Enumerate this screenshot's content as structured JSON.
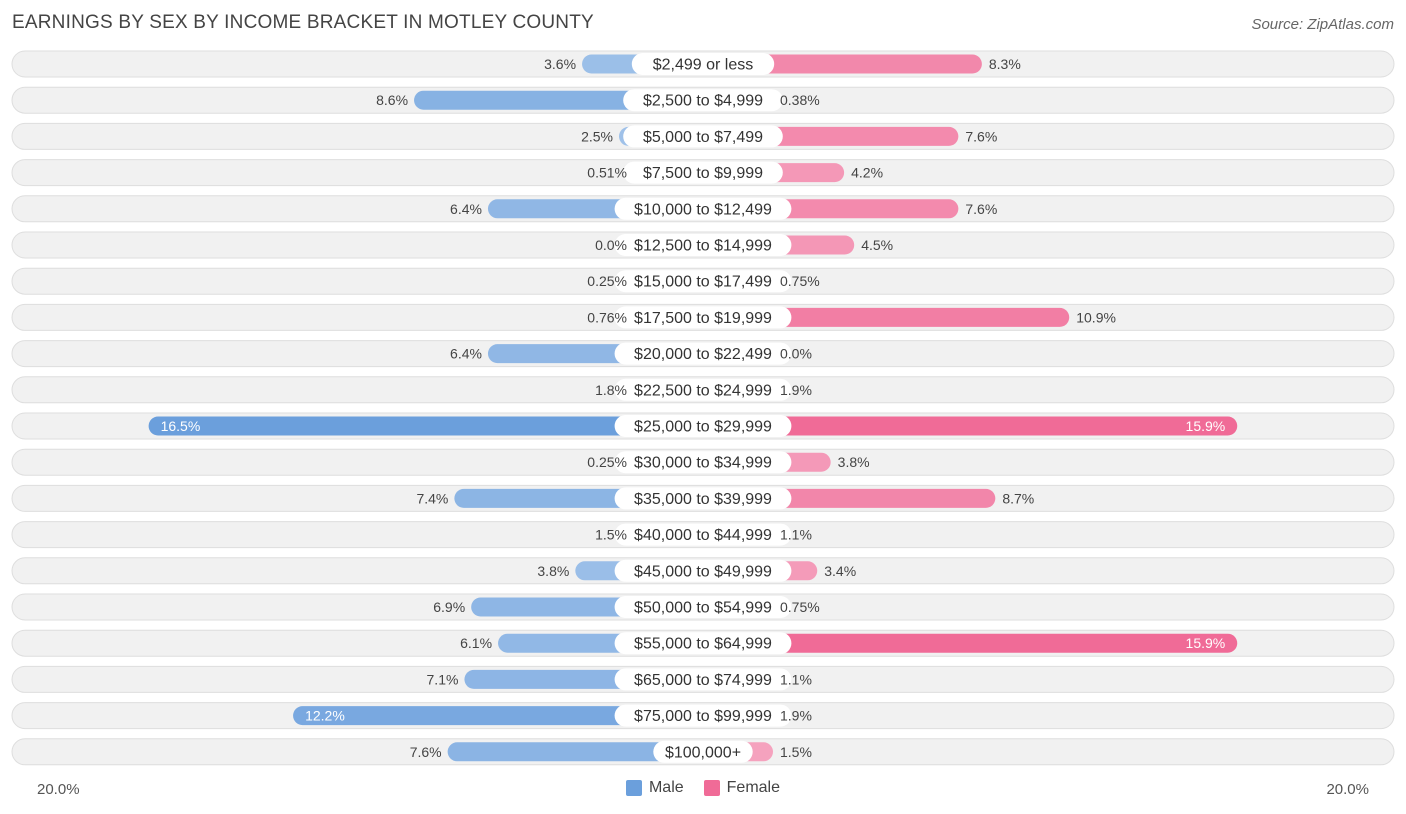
{
  "header": {
    "title": "EARNINGS BY SEX BY INCOME BRACKET IN MOTLEY COUNTY",
    "source": "Source: ZipAtlas.com"
  },
  "colors": {
    "male_light": "#a9c8ec",
    "male_strong": "#6b9fdc",
    "female_light": "#f5a8c2",
    "female_strong": "#f06b97",
    "row_bg": "#f1f1f1",
    "row_border": "#dedede"
  },
  "axis": {
    "left_label": "20.0%",
    "right_label": "20.0%"
  },
  "legend": {
    "male": "Male",
    "female": "Female"
  },
  "chart_data": {
    "type": "bar",
    "orientation": "horizontal-diverging",
    "title": "EARNINGS BY SEX BY INCOME BRACKET IN MOTLEY COUNTY",
    "xlim": [
      -20,
      20
    ],
    "categories": [
      "$2,499 or less",
      "$2,500 to $4,999",
      "$5,000 to $7,499",
      "$7,500 to $9,999",
      "$10,000 to $12,499",
      "$12,500 to $14,999",
      "$15,000 to $17,499",
      "$17,500 to $19,999",
      "$20,000 to $22,499",
      "$22,500 to $24,999",
      "$25,000 to $29,999",
      "$30,000 to $34,999",
      "$35,000 to $39,999",
      "$40,000 to $44,999",
      "$45,000 to $49,999",
      "$50,000 to $54,999",
      "$55,000 to $64,999",
      "$65,000 to $74,999",
      "$75,000 to $99,999",
      "$100,000+"
    ],
    "series": [
      {
        "name": "Male",
        "values": [
          3.6,
          8.6,
          2.5,
          0.51,
          6.4,
          0.0,
          0.25,
          0.76,
          6.4,
          1.8,
          16.5,
          0.25,
          7.4,
          1.5,
          3.8,
          6.9,
          6.1,
          7.1,
          12.2,
          7.6
        ],
        "labels": [
          "3.6%",
          "8.6%",
          "2.5%",
          "0.51%",
          "6.4%",
          "0.0%",
          "0.25%",
          "0.76%",
          "6.4%",
          "1.8%",
          "16.5%",
          "0.25%",
          "7.4%",
          "1.5%",
          "3.8%",
          "6.9%",
          "6.1%",
          "7.1%",
          "12.2%",
          "7.6%"
        ]
      },
      {
        "name": "Female",
        "values": [
          8.3,
          0.38,
          7.6,
          4.2,
          7.6,
          4.5,
          0.75,
          10.9,
          0.0,
          1.9,
          15.9,
          3.8,
          8.7,
          1.1,
          3.4,
          0.75,
          15.9,
          1.1,
          1.9,
          1.5
        ],
        "labels": [
          "8.3%",
          "0.38%",
          "7.6%",
          "4.2%",
          "7.6%",
          "4.5%",
          "0.75%",
          "10.9%",
          "0.0%",
          "1.9%",
          "15.9%",
          "3.8%",
          "8.7%",
          "1.1%",
          "3.4%",
          "0.75%",
          "15.9%",
          "1.1%",
          "1.9%",
          "1.5%"
        ]
      }
    ]
  }
}
